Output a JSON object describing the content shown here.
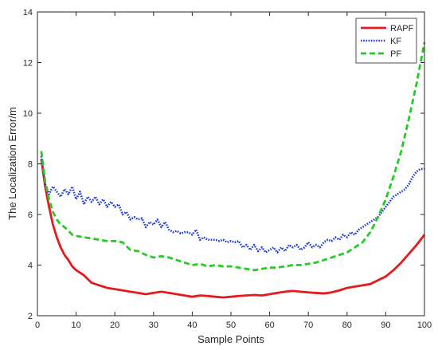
{
  "chart_data": {
    "type": "line",
    "title": "",
    "xlabel": "Sample Points",
    "ylabel": "The Localization Error/m",
    "xlim": [
      0,
      100
    ],
    "ylim": [
      2,
      14
    ],
    "xticks": [
      0,
      10,
      20,
      30,
      40,
      50,
      60,
      70,
      80,
      90,
      100
    ],
    "yticks": [
      2,
      4,
      6,
      8,
      10,
      12,
      14
    ],
    "grid": false,
    "legend_position": "top-right",
    "series": [
      {
        "name": "RAPF",
        "color": "#e41a1c",
        "style": "solid",
        "x": [
          1,
          2,
          3,
          4,
          5,
          6,
          7,
          8,
          9,
          10,
          12,
          14,
          16,
          18,
          20,
          22,
          24,
          26,
          28,
          30,
          32,
          34,
          36,
          38,
          40,
          42,
          44,
          46,
          48,
          50,
          52,
          54,
          56,
          58,
          60,
          62,
          64,
          66,
          68,
          70,
          72,
          74,
          76,
          78,
          80,
          82,
          84,
          86,
          88,
          90,
          92,
          94,
          96,
          98,
          100
        ],
        "y": [
          8.2,
          7.1,
          6.3,
          5.6,
          5.1,
          4.7,
          4.4,
          4.2,
          3.95,
          3.8,
          3.6,
          3.3,
          3.2,
          3.1,
          3.05,
          3.0,
          2.95,
          2.9,
          2.85,
          2.9,
          2.95,
          2.9,
          2.85,
          2.8,
          2.75,
          2.8,
          2.78,
          2.75,
          2.72,
          2.75,
          2.78,
          2.8,
          2.82,
          2.8,
          2.85,
          2.9,
          2.95,
          2.98,
          2.95,
          2.92,
          2.9,
          2.88,
          2.92,
          3.0,
          3.1,
          3.15,
          3.2,
          3.25,
          3.4,
          3.55,
          3.8,
          4.1,
          4.45,
          4.8,
          5.2
        ]
      },
      {
        "name": "KF",
        "color": "#1f3fd6",
        "style": "dotted",
        "x": [
          1,
          2,
          3,
          4,
          5,
          6,
          7,
          8,
          9,
          10,
          11,
          12,
          13,
          14,
          15,
          16,
          17,
          18,
          19,
          20,
          21,
          22,
          23,
          24,
          25,
          26,
          27,
          28,
          29,
          30,
          31,
          32,
          33,
          34,
          35,
          36,
          37,
          38,
          39,
          40,
          41,
          42,
          43,
          44,
          45,
          46,
          47,
          48,
          49,
          50,
          51,
          52,
          53,
          54,
          55,
          56,
          57,
          58,
          59,
          60,
          61,
          62,
          63,
          64,
          65,
          66,
          67,
          68,
          69,
          70,
          71,
          72,
          73,
          74,
          75,
          76,
          77,
          78,
          79,
          80,
          81,
          82,
          83,
          84,
          85,
          86,
          87,
          88,
          89,
          90,
          91,
          92,
          93,
          94,
          95,
          96,
          97,
          98,
          99,
          100
        ],
        "y": [
          8.3,
          7.2,
          6.8,
          7.1,
          6.9,
          6.7,
          7.0,
          6.8,
          7.1,
          6.6,
          6.9,
          6.4,
          6.7,
          6.5,
          6.7,
          6.4,
          6.6,
          6.3,
          6.5,
          6.3,
          6.4,
          6.0,
          6.1,
          5.8,
          5.9,
          5.8,
          5.85,
          5.5,
          5.7,
          5.6,
          5.8,
          5.5,
          5.7,
          5.4,
          5.3,
          5.35,
          5.25,
          5.3,
          5.3,
          5.2,
          5.4,
          5.0,
          5.1,
          5.0,
          5.0,
          5.0,
          4.95,
          5.0,
          4.9,
          4.95,
          4.9,
          4.95,
          4.7,
          4.8,
          4.6,
          4.8,
          4.55,
          4.7,
          4.5,
          4.6,
          4.7,
          4.5,
          4.7,
          4.55,
          4.8,
          4.7,
          4.8,
          4.6,
          4.7,
          4.9,
          4.7,
          4.8,
          4.7,
          4.9,
          5.0,
          4.95,
          5.1,
          5.0,
          5.2,
          5.1,
          5.3,
          5.2,
          5.4,
          5.5,
          5.6,
          5.7,
          5.8,
          5.9,
          6.1,
          6.3,
          6.5,
          6.7,
          6.8,
          6.9,
          7.0,
          7.2,
          7.5,
          7.7,
          7.8,
          7.8
        ]
      },
      {
        "name": "PF",
        "color": "#22cc22",
        "style": "dashed",
        "x": [
          1,
          2,
          3,
          4,
          5,
          6,
          7,
          8,
          9,
          10,
          12,
          14,
          16,
          18,
          20,
          22,
          24,
          26,
          28,
          30,
          32,
          34,
          36,
          38,
          40,
          42,
          44,
          46,
          48,
          50,
          52,
          54,
          56,
          58,
          60,
          62,
          64,
          66,
          68,
          70,
          72,
          74,
          76,
          78,
          80,
          82,
          84,
          86,
          88,
          90,
          92,
          94,
          96,
          98,
          100
        ],
        "y": [
          8.5,
          7.3,
          6.6,
          6.1,
          5.8,
          5.6,
          5.5,
          5.35,
          5.2,
          5.15,
          5.1,
          5.05,
          5.0,
          4.95,
          4.95,
          4.9,
          4.6,
          4.55,
          4.4,
          4.3,
          4.35,
          4.3,
          4.2,
          4.1,
          4.0,
          4.05,
          3.95,
          4.0,
          3.95,
          3.95,
          3.9,
          3.85,
          3.8,
          3.85,
          3.9,
          3.9,
          3.95,
          4.0,
          4.0,
          4.05,
          4.1,
          4.2,
          4.3,
          4.4,
          4.5,
          4.7,
          4.9,
          5.3,
          5.9,
          6.6,
          7.5,
          8.5,
          9.8,
          11.2,
          12.8
        ]
      }
    ]
  }
}
